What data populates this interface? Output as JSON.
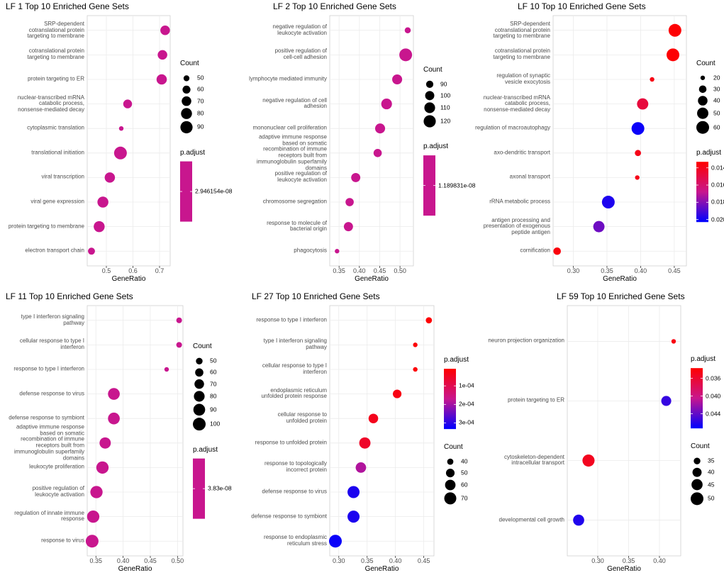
{
  "chart_data": [
    {
      "type": "dot",
      "title": "LF 1 Top 10 Enriched Gene Sets",
      "categories": [
        "SRP-dependent\ncotranslational protein\ntargeting to membrane",
        "cotranslational protein\ntargeting to membrane",
        "protein targeting to ER",
        "nuclear-transcribed mRNA\ncatabolic process,\nnonsense-mediated decay",
        "cytoplasmic translation",
        "translational initiation",
        "viral transcription",
        "viral gene expression",
        "protein targeting to membrane",
        "electron transport chain"
      ],
      "values": [
        0.721,
        0.711,
        0.708,
        0.58,
        0.556,
        0.553,
        0.513,
        0.487,
        0.473,
        0.444
      ],
      "sizes": [
        70,
        70,
        75,
        65,
        45,
        95,
        75,
        80,
        80,
        55
      ],
      "p_adjust": [
        2.946154e-08,
        2.946154e-08,
        2.946154e-08,
        2.946154e-08,
        2.946154e-08,
        2.946154e-08,
        2.946154e-08,
        2.946154e-08,
        2.946154e-08,
        2.946154e-08
      ],
      "xlabel": "GeneRatio",
      "xlim": [
        0.428,
        0.74
      ],
      "xticks": [
        0.5,
        0.6,
        0.7
      ],
      "size_legend": {
        "title": "Count",
        "values": [
          50,
          60,
          70,
          80,
          90
        ]
      },
      "color_legend": {
        "title": "p.adjust",
        "ticks": [
          {
            "value": 2.946154e-08,
            "label": "2.946154e-08"
          }
        ]
      },
      "colors": [
        "#ff0000",
        "#c8168e",
        "#0000ff"
      ],
      "legend_order": [
        "size",
        "color"
      ],
      "grid": true
    },
    {
      "type": "dot",
      "title": "LF 2 Top 10 Enriched Gene Sets",
      "categories": [
        "negative regulation of\nleukocyte activation",
        "positive regulation of\ncell-cell adhesion",
        "lymphocyte mediated immunity",
        "negative regulation of cell\nadhesion",
        "mononuclear cell proliferation",
        "adaptive immune response\nbased on somatic\nrecombination of immune\nreceptors built from\nimmunoglobulin superfamily\ndomains",
        "positive regulation of\nleukocyte activation",
        "chromosome segregation",
        "response to molecule of\nbacterial origin",
        "phagocytosis"
      ],
      "values": [
        0.519,
        0.514,
        0.493,
        0.467,
        0.451,
        0.445,
        0.391,
        0.376,
        0.373,
        0.345
      ],
      "sizes": [
        85,
        125,
        105,
        110,
        105,
        95,
        100,
        95,
        100,
        80
      ],
      "p_adjust": [
        1.189831e-08,
        1.189831e-08,
        1.189831e-08,
        1.189831e-08,
        1.189831e-08,
        1.189831e-08,
        1.189831e-08,
        1.189831e-08,
        1.189831e-08,
        1.189831e-08
      ],
      "xlabel": "GeneRatio",
      "xlim": [
        0.327,
        0.533
      ],
      "xticks": [
        0.35,
        {
          "value": 0.4,
          "label": "0.40"
        },
        0.45,
        {
          "value": 0.5,
          "label": "0.50"
        }
      ],
      "size_legend": {
        "title": "Count",
        "values": [
          90,
          100,
          110,
          120
        ]
      },
      "color_legend": {
        "title": "p.adjust",
        "ticks": [
          {
            "value": 1.189831e-08,
            "label": "1.189831e-08"
          }
        ]
      },
      "colors": [
        "#ff0000",
        "#c8168e",
        "#0000ff"
      ],
      "legend_order": [
        "size",
        "color"
      ],
      "grid": true
    },
    {
      "type": "dot",
      "title": "LF 10 Top 10 Enriched Gene Sets",
      "categories": [
        "SRP-dependent\ncotranslational protein\ntargeting to membrane",
        "cotranslational protein\ntargeting to membrane",
        "regulation of synaptic\nvesicle exocytosis",
        "nuclear-transcribed mRNA\ncatabolic process,\nnonsense-mediated decay",
        "regulation of macroautophagy",
        "axo-dendritic transport",
        "axonal transport",
        "rRNA metabolic process",
        "antigen processing and\npresentation of exogenous\npeptide antigen",
        "cornification"
      ],
      "values": [
        0.451,
        0.448,
        0.417,
        0.403,
        0.396,
        0.396,
        0.395,
        0.352,
        0.338,
        0.276
      ],
      "sizes": [
        60,
        60,
        20,
        50,
        60,
        25,
        20,
        60,
        50,
        30
      ],
      "p_adjust": [
        0.0134,
        0.0134,
        0.0138,
        0.0148,
        0.0201,
        0.0139,
        0.0139,
        0.0198,
        0.0184,
        0.0136
      ],
      "xlabel": "GeneRatio",
      "xlim": [
        0.27,
        0.468
      ],
      "xticks": [
        {
          "value": 0.3,
          "label": "0.30"
        },
        0.35,
        {
          "value": 0.4,
          "label": "0.40"
        },
        0.45
      ],
      "size_legend": {
        "title": "Count",
        "values": [
          20,
          30,
          40,
          50,
          60
        ]
      },
      "color_legend": {
        "title": "p.adjust",
        "lim": [
          0.0133,
          0.0203
        ],
        "ticks": [
          0.014,
          0.016,
          0.018,
          {
            "value": 0.02,
            "label": "0.020"
          }
        ]
      },
      "colors": [
        "#ff0000",
        "#c8168e",
        "#0000ff"
      ],
      "legend_order": [
        "size",
        "color"
      ],
      "grid": true
    },
    {
      "type": "dot",
      "title": "LF 11 Top 10 Enriched Gene Sets",
      "categories": [
        "type I interferon signaling\npathway",
        "cellular response to type I\ninterferon",
        "response to type I interferon",
        "defense response to virus",
        "defense response to symbiont",
        "adaptive immune response\nbased on somatic\nrecombination of immune\nreceptors built from\nimmunoglobulin superfamily\ndomains",
        "leukocyte proliferation",
        "positive regulation of\nleukocyte activation",
        "regulation of innate immune\nresponse",
        "response to virus"
      ],
      "values": [
        0.503,
        0.503,
        0.48,
        0.383,
        0.383,
        0.367,
        0.362,
        0.351,
        0.345,
        0.343
      ],
      "sizes": [
        45,
        45,
        40,
        90,
        90,
        85,
        95,
        95,
        95,
        100
      ],
      "p_adjust": [
        3.83e-08,
        3.83e-08,
        3.83e-08,
        3.83e-08,
        3.83e-08,
        3.83e-08,
        3.83e-08,
        3.83e-08,
        3.83e-08,
        3.83e-08
      ],
      "xlabel": "GeneRatio",
      "xlim": [
        0.334,
        0.51
      ],
      "xticks": [
        0.35,
        {
          "value": 0.4,
          "label": "0.40"
        },
        0.45,
        {
          "value": 0.5,
          "label": "0.50"
        }
      ],
      "size_legend": {
        "title": "Count",
        "values": [
          50,
          60,
          70,
          80,
          90,
          100
        ]
      },
      "color_legend": {
        "title": "p.adjust",
        "ticks": [
          {
            "value": 3.83e-08,
            "label": "3.83e-08"
          }
        ]
      },
      "colors": [
        "#ff0000",
        "#c8168e",
        "#0000ff"
      ],
      "legend_order": [
        "size",
        "color"
      ],
      "grid": true
    },
    {
      "type": "dot",
      "title": "LF 27 Top 10 Enriched Gene Sets",
      "categories": [
        "response to type I interferon",
        "type I interferon signaling\npathway",
        "cellular response to type I\ninterferon",
        "endoplasmic reticulum\nunfolded protein response",
        "cellular response to\nunfolded protein",
        "response to unfolded protein",
        "response to topologically\nincorrect protein",
        "defense response to virus",
        "defense response to symbiont",
        "response to endoplasmic\nreticulum stress"
      ],
      "values": [
        0.459,
        0.435,
        0.435,
        0.403,
        0.361,
        0.346,
        0.339,
        0.326,
        0.326,
        0.294
      ],
      "sizes": [
        40,
        35,
        35,
        50,
        55,
        65,
        60,
        70,
        70,
        75
      ],
      "p_adjust": [
        1.2e-05,
        1.5e-05,
        1.5e-05,
        3e-05,
        4e-05,
        5.5e-05,
        0.00019,
        0.00031,
        0.00031,
        0.000325
      ],
      "xlabel": "GeneRatio",
      "xlim": [
        0.284,
        0.468
      ],
      "xticks": [
        {
          "value": 0.3,
          "label": "0.30"
        },
        0.35,
        {
          "value": 0.4,
          "label": "0.40"
        },
        0.45
      ],
      "size_legend": {
        "title": "Count",
        "values": [
          40,
          50,
          60,
          70
        ]
      },
      "color_legend": {
        "title": "p.adjust",
        "lim": [
          8e-06,
          0.000333
        ],
        "ticks": [
          {
            "value": 0.0001,
            "label": "1e-04"
          },
          {
            "value": 0.0002,
            "label": "2e-04"
          },
          {
            "value": 0.0003,
            "label": "3e-04"
          }
        ]
      },
      "colors": [
        "#ff0000",
        "#c8168e",
        "#0000ff"
      ],
      "legend_order": [
        "color",
        "size"
      ],
      "grid": true
    },
    {
      "type": "dot",
      "title": "LF 59 Top 10 Enriched Gene Sets",
      "categories": [
        "neuron projection organization",
        "protein targeting to ER",
        "cytoskeleton-dependent\nintracellular transport",
        "developmental cell growth"
      ],
      "values": [
        0.423,
        0.411,
        0.285,
        0.269
      ],
      "sizes": [
        32,
        42,
        48,
        45
      ],
      "p_adjust": [
        0.0345,
        0.0455,
        0.0352,
        0.0462
      ],
      "xlabel": "GeneRatio",
      "xlim": [
        0.2506,
        0.4345
      ],
      "xticks": [
        {
          "value": 0.3,
          "label": "0.30"
        },
        0.35,
        {
          "value": 0.4,
          "label": "0.40"
        }
      ],
      "size_legend": {
        "title": "Count",
        "values": [
          35,
          40,
          45,
          50
        ]
      },
      "color_legend": {
        "title": "p.adjust",
        "lim": [
          0.0337,
          0.0473
        ],
        "ticks": [
          0.036,
          {
            "value": 0.04,
            "label": "0.040"
          },
          0.044
        ]
      },
      "colors": [
        "#ff0000",
        "#c8168e",
        "#0000ff"
      ],
      "legend_order": [
        "color",
        "size"
      ],
      "grid": true
    }
  ]
}
